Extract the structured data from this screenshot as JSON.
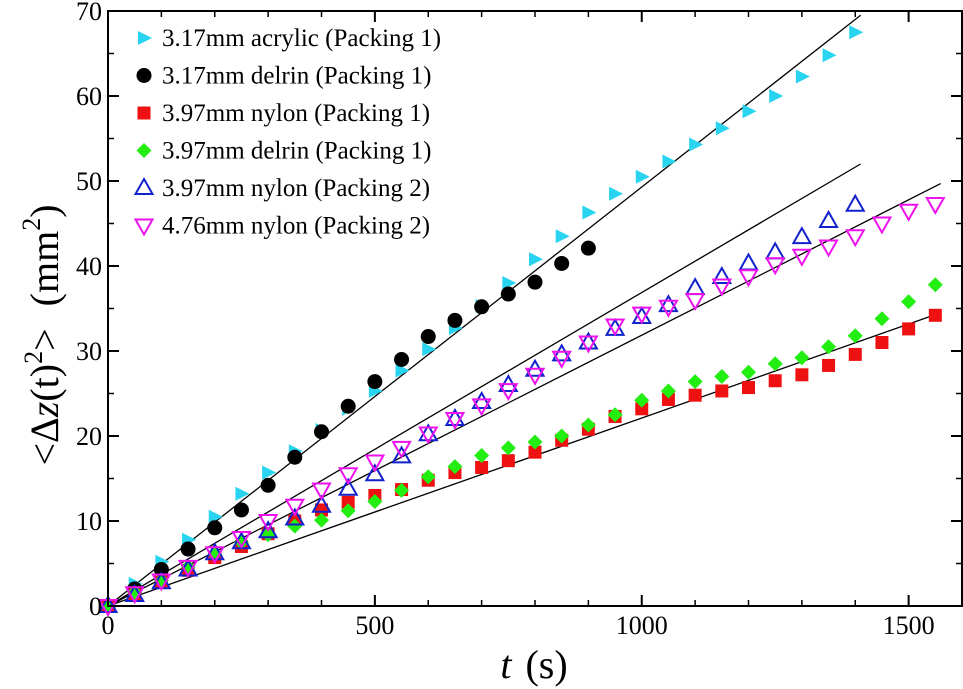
{
  "chart_data": {
    "type": "scatter",
    "title": "",
    "xlabel": "t  (s)",
    "xlabel_var": "t",
    "xlabel_unit": "(s)",
    "ylabel": "<Δz(t)²>  (mm²)",
    "ylabel_parts": {
      "open": "<",
      "delta": "Δ",
      "var": "z",
      "arg": "(t)",
      "exp": "2",
      "close": ">",
      "unit": "(mm",
      "unit_exp": "2",
      "unit_close": ")"
    },
    "xlim": [
      0,
      1600
    ],
    "ylim": [
      0,
      70
    ],
    "xticks": [
      0,
      500,
      1000,
      1500
    ],
    "xtick_labels": [
      "0",
      "500",
      "1000",
      "1500"
    ],
    "yticks": [
      0,
      10,
      20,
      30,
      40,
      50,
      60,
      70
    ],
    "ytick_labels": [
      "0",
      "10",
      "20",
      "30",
      "40",
      "50",
      "60",
      "70"
    ],
    "x_minor_step": 100,
    "y_minor_step": 5,
    "legend_position": "top-left",
    "series": [
      {
        "name": "3.17mm acrylic (Packing 1)",
        "marker": "triangle-right",
        "filled": true,
        "color": "#29d4f0",
        "x": [
          0,
          50,
          100,
          150,
          200,
          250,
          300,
          350,
          400,
          450,
          500,
          550,
          600,
          650,
          700,
          750,
          800,
          850,
          900,
          950,
          1000,
          1050,
          1100,
          1150,
          1200,
          1250,
          1300,
          1350,
          1400
        ],
        "y": [
          0,
          2.6,
          5.2,
          7.8,
          10.5,
          13.2,
          15.7,
          18.2,
          20.7,
          23.2,
          25.3,
          27.7,
          30.2,
          32.7,
          35.3,
          38.0,
          40.8,
          43.5,
          46.3,
          48.5,
          50.5,
          52.3,
          54.3,
          56.2,
          58.2,
          60.0,
          62.3,
          64.8,
          67.5
        ]
      },
      {
        "name": "3.17mm delrin (Packing 1)",
        "marker": "circle",
        "filled": true,
        "color": "#000000",
        "x": [
          0,
          50,
          100,
          150,
          200,
          250,
          300,
          350,
          400,
          450,
          500,
          550,
          600,
          650,
          700,
          750,
          800,
          850,
          900
        ],
        "y": [
          0,
          2.0,
          4.3,
          6.7,
          9.2,
          11.3,
          14.2,
          17.5,
          20.5,
          23.5,
          26.4,
          29.0,
          31.7,
          33.6,
          35.2,
          36.7,
          38.1,
          40.3,
          42.1
        ]
      },
      {
        "name": "3.97mm nylon (Packing 1)",
        "marker": "square",
        "filled": true,
        "color": "#ee1111",
        "x": [
          0,
          50,
          100,
          150,
          200,
          250,
          300,
          350,
          400,
          450,
          500,
          550,
          600,
          650,
          700,
          750,
          800,
          850,
          900,
          950,
          1000,
          1050,
          1100,
          1150,
          1200,
          1250,
          1300,
          1350,
          1400,
          1450,
          1500,
          1550
        ],
        "y": [
          0,
          1.3,
          2.8,
          4.2,
          5.7,
          7.0,
          8.5,
          10.0,
          11.3,
          12.2,
          13.0,
          13.7,
          14.8,
          15.7,
          16.3,
          17.1,
          18.1,
          19.5,
          20.8,
          22.3,
          23.2,
          24.3,
          24.8,
          25.3,
          25.7,
          26.5,
          27.2,
          28.3,
          29.6,
          31.0,
          32.6,
          34.2
        ]
      },
      {
        "name": "3.97mm delrin (Packing 1)",
        "marker": "diamond",
        "filled": true,
        "color": "#22ee11",
        "x": [
          0,
          50,
          100,
          150,
          200,
          250,
          300,
          350,
          400,
          450,
          500,
          550,
          600,
          650,
          700,
          750,
          800,
          850,
          900,
          950,
          1000,
          1050,
          1100,
          1150,
          1200,
          1250,
          1300,
          1350,
          1400,
          1450,
          1500,
          1550
        ],
        "y": [
          0,
          1.6,
          3.0,
          4.6,
          6.1,
          7.5,
          8.4,
          9.4,
          10.1,
          11.2,
          12.3,
          13.6,
          15.2,
          16.4,
          17.7,
          18.6,
          19.3,
          20.0,
          21.3,
          22.5,
          24.2,
          25.3,
          26.4,
          27.0,
          27.5,
          28.5,
          29.2,
          30.5,
          31.8,
          33.8,
          35.8,
          37.8
        ]
      },
      {
        "name": "3.97mm nylon (Packing 2)",
        "marker": "triangle-up",
        "filled": false,
        "color": "#1122cc",
        "x": [
          0,
          50,
          100,
          150,
          200,
          250,
          300,
          350,
          400,
          450,
          500,
          550,
          600,
          650,
          700,
          750,
          800,
          850,
          900,
          950,
          1000,
          1050,
          1100,
          1150,
          1200,
          1250,
          1300,
          1350,
          1400
        ],
        "y": [
          0,
          1.3,
          2.8,
          4.3,
          6.2,
          7.5,
          8.8,
          10.3,
          11.8,
          13.8,
          15.5,
          17.6,
          20.2,
          22.0,
          24.0,
          26.0,
          27.8,
          29.6,
          31.0,
          32.6,
          34.0,
          35.4,
          37.4,
          38.7,
          40.3,
          41.6,
          43.4,
          45.3,
          47.2
        ]
      },
      {
        "name": "4.76mm nylon (Packing 2)",
        "marker": "triangle-down",
        "filled": false,
        "color": "#ee11ee",
        "x": [
          0,
          50,
          100,
          150,
          200,
          250,
          300,
          350,
          400,
          450,
          500,
          550,
          600,
          650,
          700,
          750,
          800,
          850,
          900,
          950,
          1000,
          1050,
          1100,
          1150,
          1200,
          1250,
          1300,
          1350,
          1400,
          1450,
          1500,
          1550
        ],
        "y": [
          0,
          1.5,
          3.0,
          4.6,
          6.2,
          8.0,
          10.0,
          11.8,
          13.7,
          15.5,
          17.0,
          18.6,
          20.3,
          22.0,
          23.6,
          25.4,
          27.2,
          29.2,
          31.0,
          33.0,
          34.4,
          35.2,
          36.0,
          37.7,
          38.8,
          40.2,
          41.2,
          42.3,
          43.5,
          45.0,
          46.5,
          47.3
        ]
      }
    ],
    "fit_lines": [
      {
        "x": [
          0,
          1410
        ],
        "y": [
          0,
          69.5
        ]
      },
      {
        "x": [
          0,
          1410
        ],
        "y": [
          0,
          52.0
        ]
      },
      {
        "x": [
          0,
          1560
        ],
        "y": [
          0,
          49.7
        ]
      },
      {
        "x": [
          0,
          1560
        ],
        "y": [
          0,
          34.5
        ]
      }
    ]
  }
}
